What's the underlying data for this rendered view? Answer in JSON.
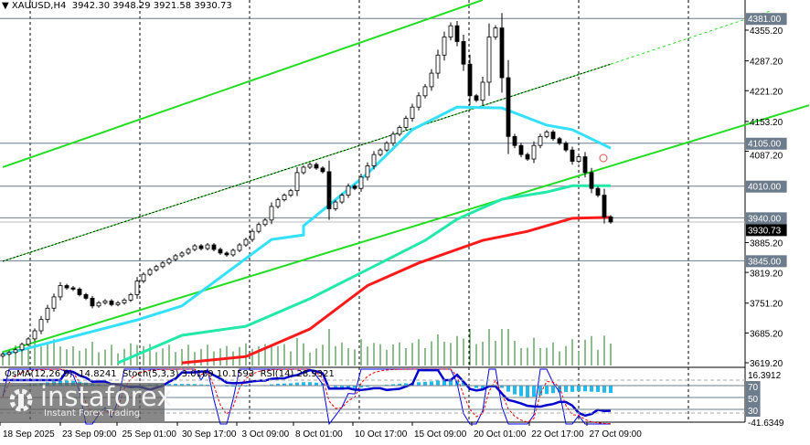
{
  "header": {
    "symbol": "XAUUSD,H4",
    "open": "3942.30",
    "high": "3948.29",
    "low": "3921.58",
    "close": "3930.73"
  },
  "indicator_header": {
    "osma": "OsMA(12,26,9) -14.8241",
    "stoch": "Stoch(5,3,3) 3.0169 10.1593",
    "rsi": "RSI(14) 28.9321"
  },
  "watermark": {
    "brand": "instaforex",
    "tagline": "Instant Forex Trading"
  },
  "colors": {
    "bull": "#ffffff",
    "bear": "#000000",
    "ma_fast": "#33e0ff",
    "ma_mid": "#22e8a8",
    "ma_slow": "#ff1a1a",
    "channel": "#22dd22",
    "levels": "#6d7c8c",
    "volume": "#1f7a1f",
    "osma": "#22bbee",
    "stoch_main": "#0000ee",
    "stoch_signal": "#ff0000",
    "rsi": "#0000cc"
  },
  "chart_data": {
    "type": "candlestick",
    "title": "XAUUSD,H4",
    "ylim": [
      3600,
      4400
    ],
    "y_ticks": [
      "4355.20",
      "4287.20",
      "4221.20",
      "4153.20",
      "4087.20",
      "3885.20",
      "3819.20",
      "3751.20",
      "3685.20",
      "3619.20"
    ],
    "x_ticks": [
      "18 Sep 2025",
      "23 Sep 09:00",
      "25 Sep 01:00",
      "30 Sep 17:00",
      "3 Oct 09:00",
      "8 Oct 01:00",
      "10 Oct 17:00",
      "15 Oct 09:00",
      "20 Oct 01:00",
      "22 Oct 17:00",
      "27 Oct 09:00"
    ],
    "grid": "vertical-dashed",
    "closes": [
      3638,
      3642,
      3648,
      3660,
      3672,
      3690,
      3715,
      3740,
      3765,
      3790,
      3785,
      3782,
      3770,
      3762,
      3745,
      3752,
      3756,
      3748,
      3752,
      3758,
      3770,
      3800,
      3815,
      3825,
      3832,
      3840,
      3848,
      3856,
      3862,
      3870,
      3878,
      3872,
      3880,
      3870,
      3862,
      3858,
      3868,
      3880,
      3892,
      3910,
      3925,
      3935,
      3965,
      3980,
      3990,
      4000,
      4040,
      4052,
      4058,
      4050,
      4042,
      3960,
      3975,
      3990,
      4010,
      4005,
      4030,
      4055,
      4080,
      4090,
      4105,
      4125,
      4140,
      4160,
      4185,
      4210,
      4230,
      4260,
      4300,
      4340,
      4365,
      4330,
      4280,
      4210,
      4200,
      4240,
      4340,
      4360,
      4250,
      4120,
      4100,
      4080,
      4070,
      4100,
      4120,
      4130,
      4115,
      4105,
      4090,
      4065,
      4075,
      4040,
      4005,
      3990,
      3942,
      3930.73
    ],
    "moving_averages": [
      {
        "role": "fast",
        "points": [
          [
            0,
            3637
          ],
          [
            21,
            3714
          ],
          [
            28,
            3745
          ],
          [
            42,
            3892
          ],
          [
            47,
            3902
          ],
          [
            47,
            3922
          ],
          [
            57,
            4038
          ],
          [
            64,
            4135
          ],
          [
            71,
            4185
          ],
          [
            78,
            4183
          ],
          [
            85,
            4145
          ],
          [
            89,
            4135
          ],
          [
            95,
            4094
          ]
        ]
      },
      {
        "role": "mid",
        "points": [
          [
            18,
            3619
          ],
          [
            28,
            3680
          ],
          [
            38,
            3700
          ],
          [
            48,
            3761
          ],
          [
            66,
            3890
          ],
          [
            71,
            3937
          ],
          [
            78,
            3981
          ],
          [
            85,
            3997
          ],
          [
            89,
            4011
          ],
          [
            95,
            4011
          ]
        ]
      },
      {
        "role": "slow",
        "points": [
          [
            28,
            3619
          ],
          [
            38,
            3633
          ],
          [
            48,
            3694
          ],
          [
            57,
            3790
          ],
          [
            65,
            3840
          ],
          [
            75,
            3890
          ],
          [
            82,
            3910
          ],
          [
            89,
            3939
          ],
          [
            95,
            3941
          ]
        ]
      }
    ],
    "channels": [
      {
        "role": "upper",
        "from": [
          0,
          4052
        ],
        "to": [
          75,
          4422
        ]
      },
      {
        "role": "middle",
        "from": [
          0,
          3844
        ],
        "to": [
          95,
          4280
        ],
        "extend_to": [
          120,
          4398
        ]
      },
      {
        "role": "lower",
        "from": [
          0,
          3643
        ],
        "to": [
          126,
          4189
        ]
      }
    ],
    "levels": [
      {
        "label": "4381.00",
        "value": 4381
      },
      {
        "label": "4105.00",
        "value": 4105
      },
      {
        "label": "4010.00",
        "value": 4010
      },
      {
        "label": "3940.00",
        "value": 3940
      },
      {
        "label": "3845.00",
        "value": 3845
      }
    ],
    "current_price": {
      "label": "3930.73",
      "value": 3930.73
    },
    "indicator_pane": {
      "max_label": "16.3912",
      "min_label": "-41.6349",
      "levels": [
        "70",
        "50",
        "30"
      ]
    }
  }
}
